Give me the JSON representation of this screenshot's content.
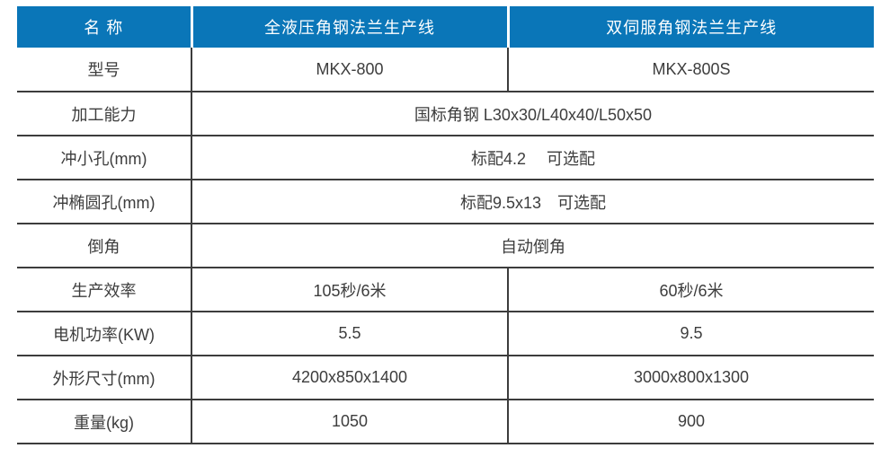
{
  "colors": {
    "header_bg": "#0A76B8",
    "header_text": "#FFFFFF",
    "border": "#3C3C3C",
    "text": "#3D3D3D",
    "page_bg": "#FFFFFF"
  },
  "table": {
    "header": {
      "name_label": "名 称",
      "product1": "全液压角钢法兰生产线",
      "product2": "双伺服角钢法兰生产线"
    },
    "rows": [
      {
        "label": "型号",
        "product1": "MKX-800",
        "product2": "MKX-800S"
      },
      {
        "label": "加工能力",
        "merged": "国标角钢 L30x30/L40x40/L50x50"
      },
      {
        "label": "冲小孔(mm)",
        "merged": "标配4.2　 可选配"
      },
      {
        "label": "冲椭圆孔(mm)",
        "merged": "标配9.5x13　可选配"
      },
      {
        "label": "倒角",
        "merged": "自动倒角"
      },
      {
        "label": "生产效率",
        "product1": "105秒/6米",
        "product2": "60秒/6米"
      },
      {
        "label": "电机功率(KW)",
        "product1": "5.5",
        "product2": "9.5"
      },
      {
        "label": "外形尺寸(mm)",
        "product1": "4200x850x1400",
        "product2": "3000x800x1300"
      },
      {
        "label": "重量(kg)",
        "product1": "1050",
        "product2": "900"
      }
    ]
  }
}
